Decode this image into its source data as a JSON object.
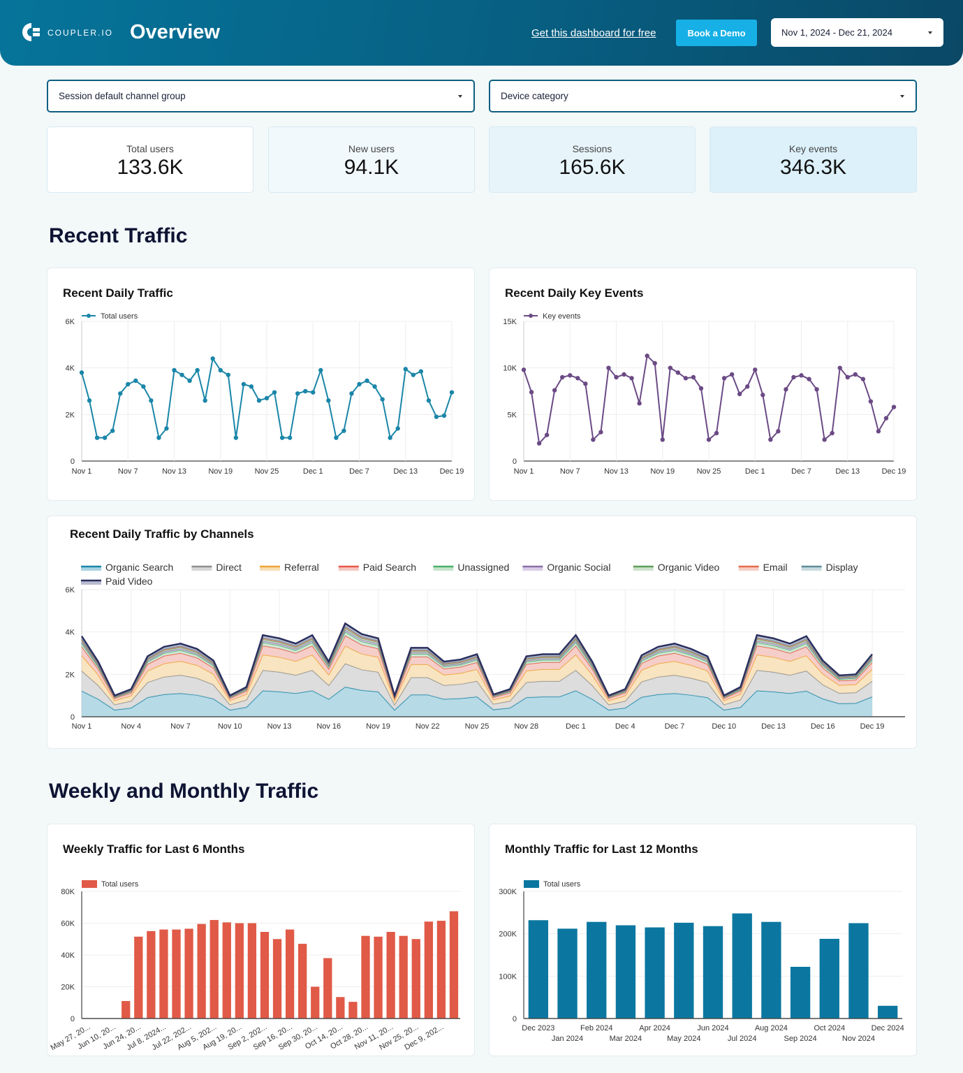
{
  "header": {
    "brand": "COUPLER.IO",
    "title": "Overview",
    "free_link": "Get this dashboard for free",
    "demo_button": "Book a Demo",
    "date_range": "Nov 1, 2024 - Dec 21, 2024"
  },
  "filters": {
    "channel": "Session default channel group",
    "device": "Device category"
  },
  "kpis": [
    {
      "label": "Total users",
      "value": "133.6K"
    },
    {
      "label": "New users",
      "value": "94.1K"
    },
    {
      "label": "Sessions",
      "value": "165.6K"
    },
    {
      "label": "Key events",
      "value": "346.3K"
    }
  ],
  "sections": {
    "recent": "Recent Traffic",
    "weekly_monthly": "Weekly and Monthly Traffic"
  },
  "colors": {
    "teal": "#1a86a8",
    "purple": "#6b4a85",
    "red": "#e05a47",
    "blue": "#0b77a0"
  },
  "chart_data": [
    {
      "type": "line",
      "title": "Recent Daily Traffic",
      "legend": "Total users",
      "ylim": [
        0,
        6000
      ],
      "yticks": [
        "0",
        "2K",
        "4K",
        "6K"
      ],
      "xticks": [
        "Nov 1",
        "Nov 7",
        "Nov 13",
        "Nov 19",
        "Nov 25",
        "Dec 1",
        "Dec 7",
        "Dec 13",
        "Dec 19"
      ],
      "values": [
        3800,
        2600,
        1000,
        1000,
        1300,
        2900,
        3300,
        3450,
        3200,
        2600,
        1000,
        1400,
        3900,
        3700,
        3450,
        3900,
        2600,
        4400,
        3900,
        3700,
        1000,
        3300,
        3200,
        2600,
        2700,
        2950,
        1000,
        1000,
        2900,
        3000,
        2950,
        3900,
        2600,
        1000,
        1300,
        2900,
        3300,
        3450,
        3200,
        2650,
        1000,
        1400,
        3950,
        3700,
        3850,
        2600,
        1900,
        1950,
        2950
      ]
    },
    {
      "type": "line",
      "title": "Recent Daily Key Events",
      "legend": "Key events",
      "ylim": [
        0,
        15000
      ],
      "yticks": [
        "0",
        "5K",
        "10K",
        "15K"
      ],
      "xticks": [
        "Nov 1",
        "Nov 7",
        "Nov 13",
        "Nov 19",
        "Nov 25",
        "Dec 1",
        "Dec 7",
        "Dec 13",
        "Dec 19"
      ],
      "values": [
        9800,
        7400,
        1900,
        2800,
        7600,
        9000,
        9200,
        8900,
        8300,
        2300,
        3100,
        10000,
        9000,
        9300,
        8900,
        6200,
        11300,
        10500,
        2300,
        10000,
        9500,
        8900,
        9000,
        7800,
        2300,
        3000,
        8900,
        9300,
        7200,
        8000,
        9800,
        7100,
        2300,
        3200,
        7700,
        9000,
        9200,
        8800,
        7700,
        2300,
        3000,
        10000,
        9000,
        9300,
        8800,
        6400,
        3200,
        4600,
        5800
      ]
    },
    {
      "type": "area",
      "stacked": true,
      "title": "Recent Daily Traffic by Channels",
      "ylim": [
        0,
        6000
      ],
      "yticks": [
        "0",
        "2K",
        "4K",
        "6K"
      ],
      "xticks": [
        "Nov 1",
        "Nov 4",
        "Nov 7",
        "Nov 10",
        "Nov 13",
        "Nov 16",
        "Nov 19",
        "Nov 22",
        "Nov 25",
        "Nov 28",
        "Dec 1",
        "Dec 4",
        "Dec 7",
        "Dec 10",
        "Dec 13",
        "Dec 16",
        "Dec 19"
      ],
      "totals": [
        3800,
        2600,
        1000,
        1300,
        2850,
        3300,
        3450,
        3200,
        2650,
        1000,
        1400,
        3850,
        3700,
        3450,
        3850,
        2600,
        4400,
        3900,
        3700,
        1000,
        3250,
        3250,
        2600,
        2700,
        2950,
        1050,
        1300,
        2850,
        2950,
        2950,
        3850,
        2600,
        1000,
        1300,
        2900,
        3300,
        3450,
        3200,
        2850,
        1000,
        1400,
        3850,
        3700,
        3450,
        3800,
        2650,
        1950,
        2000,
        2950
      ],
      "series": [
        {
          "name": "Organic Search",
          "color": "#1a86a8",
          "fill": "#a9d3e2",
          "share": 0.32
        },
        {
          "name": "Direct",
          "color": "#8e8e8e",
          "fill": "#d7d7d7",
          "share": 0.25
        },
        {
          "name": "Referral",
          "color": "#f0a63a",
          "fill": "#f7dfb5",
          "share": 0.19
        },
        {
          "name": "Paid Search",
          "color": "#e9574a",
          "fill": "#f4c6c0",
          "share": 0.11
        },
        {
          "name": "Unassigned",
          "color": "#4caf6a",
          "fill": "#c6e5cc",
          "share": 0.04
        },
        {
          "name": "Organic Social",
          "color": "#8a6fa8",
          "fill": "#d9cde6",
          "share": 0.02
        },
        {
          "name": "Organic Video",
          "color": "#5e9e5a",
          "fill": "#cfe2cc",
          "share": 0.02
        },
        {
          "name": "Email",
          "color": "#e56b4f",
          "fill": "#f5cfc4",
          "share": 0.01
        },
        {
          "name": "Display",
          "color": "#5f8c98",
          "fill": "#cadbe0",
          "share": 0.01
        },
        {
          "name": "Paid Video",
          "color": "#2b2f5e",
          "fill": "#b9bbd0",
          "share": 0.03
        }
      ]
    },
    {
      "type": "bar",
      "title": "Weekly Traffic for Last 6 Months",
      "legend": "Total users",
      "ylim": [
        0,
        80000
      ],
      "yticks": [
        "0",
        "20K",
        "40K",
        "60K",
        "80K"
      ],
      "xticks": [
        "May 27, 20...",
        "Jun 10, 20...",
        "Jun 24, 20...",
        "Jul 8, 2024...",
        "Jul 22, 202...",
        "Aug 5, 202...",
        "Aug 19, 20...",
        "Sep 2, 202...",
        "Sep 16, 20...",
        "Sep 30, 20...",
        "Oct 14, 20...",
        "Oct 28, 20...",
        "Nov 11, 20...",
        "Nov 25, 20...",
        "Dec 9, 202..."
      ],
      "values": [
        0,
        0,
        0,
        11000,
        51500,
        55000,
        56000,
        56000,
        56500,
        59500,
        62000,
        60500,
        60000,
        60000,
        54500,
        50000,
        56000,
        47000,
        20000,
        38000,
        13500,
        10500,
        52000,
        51500,
        54500,
        52000,
        50000,
        61000,
        61500,
        67500
      ]
    },
    {
      "type": "bar",
      "title": "Monthly Traffic for Last 12 Months",
      "legend": "Total users",
      "ylim": [
        0,
        300000
      ],
      "yticks": [
        "0",
        "100K",
        "200K",
        "300K"
      ],
      "categories": [
        "Dec 2023",
        "Jan 2024",
        "Feb 2024",
        "Mar 2024",
        "Apr 2024",
        "May 2024",
        "Jun 2024",
        "Jul 2024",
        "Aug 2024",
        "Sep 2024",
        "Oct 2024",
        "Nov 2024",
        "Dec 2024"
      ],
      "values": [
        232000,
        212000,
        228000,
        220000,
        215000,
        226000,
        218000,
        248000,
        228000,
        122000,
        188000,
        225000,
        30000
      ]
    }
  ]
}
